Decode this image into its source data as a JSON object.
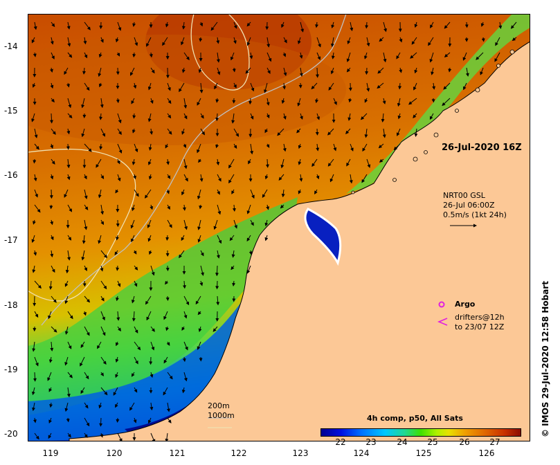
{
  "map": {
    "timestamp": "26-Jul-2020 16Z",
    "current_product": "NRT00 GSL",
    "current_time": "26-Jul 06:00Z",
    "current_scale": "0.5m/s (1kt 24h)",
    "legend": {
      "argo_label": "Argo",
      "drifters_label": "drifters@12h",
      "drifters_range": "to 23/07 12Z",
      "argo_color": "#e020e0",
      "drifters_color": "#e020e0"
    },
    "bathymetry": {
      "contour_200_label": "200m",
      "contour_1000_label": "1000m"
    },
    "colorbar": {
      "title": "4h comp, p50, All Sats",
      "ticks": [
        "22",
        "23",
        "24",
        "25",
        "26",
        "27"
      ]
    },
    "lat_ticks": [
      "-14",
      "-15",
      "-16",
      "-17",
      "-18",
      "-19",
      "-20"
    ],
    "lon_ticks": [
      "119",
      "120",
      "121",
      "122",
      "123",
      "124",
      "125",
      "126"
    ],
    "credit": "© IMOS 29-Jul-2020 12:58 Hobart",
    "colors": {
      "land": "#fcc896",
      "warm_sst": "#cc5a00",
      "cool_sst": "#0018b0",
      "mid_sst": "#20c840"
    }
  }
}
